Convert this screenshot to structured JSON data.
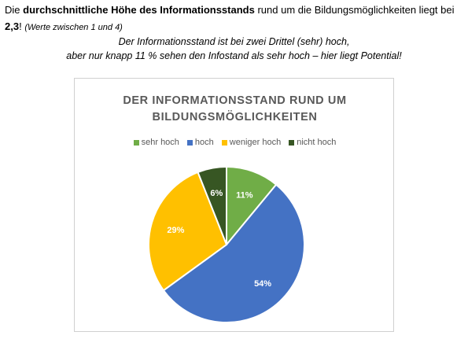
{
  "intro": {
    "text_before": "Die ",
    "text_bold": "durchschnittliche Höhe des Informationsstands",
    "text_after": " rund um die Bildungsmöglichkeiten liegt bei",
    "value": "2,3",
    "exclamation": "!",
    "note": "(Werte zwischen 1 und 4)"
  },
  "subtitle": {
    "line1": "Der Informationsstand ist bei zwei Drittel (sehr) hoch,",
    "line2": "aber nur knapp 11 % sehen den Infostand als sehr hoch – hier liegt Potential!"
  },
  "chart_data": {
    "type": "pie",
    "title_line1": "DER INFORMATIONSSTAND RUND UM",
    "title_line2": "BILDUNGSMÖGLICHKEITEN",
    "legend_position": "top",
    "categories": [
      "sehr hoch",
      "hoch",
      "weniger hoch",
      "nicht hoch"
    ],
    "values": [
      11,
      54,
      29,
      6
    ],
    "data_labels": [
      "11%",
      "54%",
      "29%",
      "6%"
    ],
    "colors": [
      "#70ad47",
      "#4472c4",
      "#ffc000",
      "#375623"
    ]
  }
}
